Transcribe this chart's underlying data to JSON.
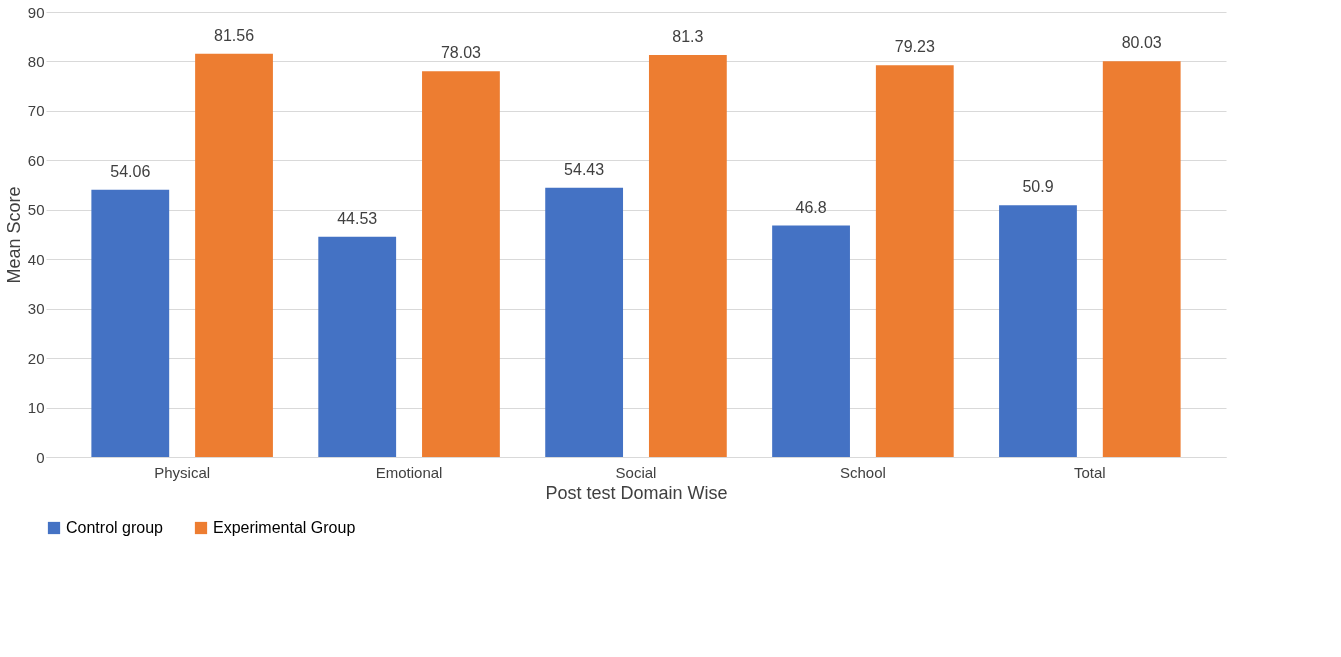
{
  "chart_data": {
    "type": "bar",
    "xlabel": "Post test Domain Wise",
    "ylabel": "Mean Score",
    "categories": [
      "Physical",
      "Emotional",
      "Social",
      "School",
      "Total"
    ],
    "series": [
      {
        "name": "Control group",
        "color": "#4472c4",
        "values": [
          54.06,
          44.53,
          54.43,
          46.8,
          50.9
        ]
      },
      {
        "name": "Experimental Group",
        "color": "#ed7d31",
        "values": [
          81.56,
          78.03,
          81.3,
          79.23,
          80.03
        ]
      }
    ],
    "ylim": [
      0,
      90
    ],
    "yticks": [
      0,
      10,
      20,
      30,
      40,
      50,
      60,
      70,
      80,
      90
    ],
    "grid": "y",
    "legend": "bottom",
    "data_labels": true
  }
}
